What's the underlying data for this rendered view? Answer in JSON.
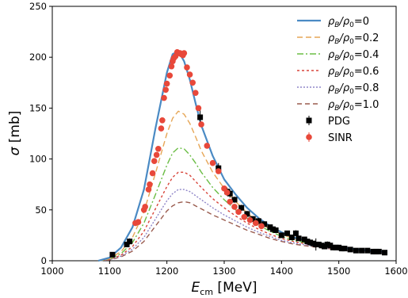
{
  "chart_data": {
    "type": "line",
    "title": "",
    "xlabel": {
      "main": "E",
      "sub": "cm",
      "unit": " [MeV]"
    },
    "ylabel": {
      "main": "σ",
      "unit": " [mb]"
    },
    "xlim": [
      1000,
      1600
    ],
    "ylim": [
      0,
      250
    ],
    "xticks": [
      1000,
      1100,
      1200,
      1300,
      1400,
      1500,
      1600
    ],
    "yticks": [
      0,
      50,
      100,
      150,
      200,
      250
    ],
    "grid": false,
    "legend_position": "top-right",
    "curve_x": [
      1080,
      1100,
      1120,
      1140,
      1160,
      1180,
      1200,
      1210,
      1220,
      1230,
      1240,
      1250,
      1260,
      1280,
      1300,
      1320,
      1340,
      1360,
      1380,
      1400,
      1420,
      1450,
      1480,
      1500,
      1520,
      1550,
      1580
    ],
    "series": [
      {
        "name": "ρB/ρ0=0",
        "label": {
          "pre": "ρ",
          "sub1": "B",
          "mid": "/ρ",
          "sub2": "0",
          "val": "=0"
        },
        "color": "#4a8ac4",
        "dash": "",
        "width": 2.2,
        "values": [
          0,
          3,
          13,
          33,
          70,
          130,
          185,
          203,
          206,
          196,
          178,
          155,
          133,
          103,
          80,
          65,
          52,
          42,
          34,
          28,
          23,
          19,
          15.5,
          13.5,
          12,
          10,
          9
        ]
      },
      {
        "name": "ρB/ρ0=0.2",
        "label": {
          "pre": "ρ",
          "sub1": "B",
          "mid": "/ρ",
          "sub2": "0",
          "val": "=0.2"
        },
        "color": "#e6a656",
        "dash": "7,4",
        "width": 1.4,
        "values": [
          0,
          2,
          9,
          23,
          48,
          86,
          125,
          140,
          147,
          144,
          135,
          122,
          108,
          87,
          71,
          58,
          47,
          38,
          31,
          26,
          22,
          18,
          15,
          13,
          11.5,
          10,
          9
        ]
      },
      {
        "name": "ρB/ρ0=0.4",
        "label": {
          "pre": "ρ",
          "sub1": "B",
          "mid": "/ρ",
          "sub2": "0",
          "val": "=0.4"
        },
        "color": "#6bbd45",
        "dash": "8,3,2,3",
        "width": 1.4,
        "values": [
          0,
          1.5,
          7,
          18,
          37,
          65,
          94,
          106,
          111,
          110,
          104,
          96,
          87,
          72,
          60,
          50,
          42,
          35,
          29,
          24,
          20,
          17,
          14,
          12.5,
          11,
          10,
          9
        ]
      },
      {
        "name": "ρB/ρ0=0.6",
        "label": {
          "pre": "ρ",
          "sub1": "B",
          "mid": "/ρ",
          "sub2": "0",
          "val": "=0.6"
        },
        "color": "#d8453a",
        "dash": "3,3",
        "width": 1.4,
        "values": [
          0,
          1.2,
          5.5,
          14,
          29,
          51,
          73,
          82,
          87,
          87,
          84,
          78,
          72,
          61,
          52,
          44,
          37,
          31,
          26,
          22,
          19,
          16,
          13.5,
          12,
          11,
          9.5,
          8.5
        ]
      },
      {
        "name": "ρB/ρ0=0.8",
        "label": {
          "pre": "ρ",
          "sub1": "B",
          "mid": "/ρ",
          "sub2": "0",
          "val": "=0.8"
        },
        "color": "#8f86c8",
        "dash": "2,2",
        "width": 1.4,
        "values": [
          0,
          1,
          4.5,
          11.5,
          23,
          41,
          59,
          66,
          70,
          70,
          68,
          64,
          60,
          52,
          45,
          39,
          33,
          28,
          24,
          20,
          17.5,
          15,
          12.5,
          11.5,
          10.5,
          9,
          8
        ]
      },
      {
        "name": "ρB/ρ0=1.0",
        "label": {
          "pre": "ρ",
          "sub1": "B",
          "mid": "/ρ",
          "sub2": "0",
          "val": "=1.0"
        },
        "color": "#9a5c4f",
        "dash": "6,4",
        "width": 1.4,
        "values": [
          0,
          0.8,
          3.8,
          9.5,
          19,
          34,
          49,
          54,
          57,
          58,
          57,
          54,
          51,
          45,
          40,
          35,
          30,
          26,
          22,
          19,
          16.5,
          14,
          12,
          11,
          10,
          9,
          8
        ]
      }
    ],
    "points": [
      {
        "name": "PDG",
        "label": "PDG",
        "marker": "square",
        "color": "#000000",
        "x": [
          1105,
          1130,
          1135,
          1258,
          1290,
          1305,
          1310,
          1318,
          1330,
          1340,
          1350,
          1360,
          1370,
          1380,
          1385,
          1390,
          1400,
          1410,
          1418,
          1425,
          1430,
          1440,
          1445,
          1450,
          1455,
          1460,
          1465,
          1470,
          1475,
          1480,
          1485,
          1490,
          1495,
          1500,
          1505,
          1510,
          1520,
          1530,
          1540,
          1550,
          1560,
          1565,
          1570,
          1580
        ],
        "y": [
          6,
          16,
          19,
          141,
          91,
          68,
          66,
          60,
          52,
          46,
          41,
          39,
          36,
          33,
          31,
          30,
          25,
          27,
          23,
          27,
          22,
          21,
          19,
          18,
          17,
          16,
          16,
          15,
          14,
          16,
          15,
          13,
          13,
          13,
          12,
          12,
          11,
          10,
          10,
          10,
          9,
          9,
          9,
          8
        ],
        "err": [
          2,
          2,
          3,
          8,
          5,
          4,
          4,
          3,
          3,
          3,
          3,
          3,
          2,
          2,
          2,
          2,
          2,
          2,
          2,
          3,
          2,
          2,
          2,
          2,
          2,
          6,
          2,
          2,
          2,
          3,
          2,
          2,
          2,
          2,
          2,
          2,
          2,
          2,
          2,
          2,
          2,
          2,
          2,
          2
        ]
      },
      {
        "name": "SINR",
        "label": "SINR",
        "marker": "circle",
        "color": "#e8483a",
        "x": [
          1145,
          1150,
          1160,
          1162,
          1168,
          1170,
          1175,
          1178,
          1182,
          1185,
          1190,
          1192,
          1195,
          1198,
          1200,
          1205,
          1208,
          1210,
          1212,
          1215,
          1218,
          1220,
          1223,
          1225,
          1228,
          1230,
          1235,
          1240,
          1245,
          1250,
          1255,
          1260,
          1270,
          1280,
          1290,
          1300,
          1305,
          1310,
          1318,
          1325,
          1335,
          1345,
          1355,
          1365
        ],
        "y": [
          37,
          38,
          50,
          53,
          70,
          75,
          86,
          98,
          104,
          110,
          130,
          138,
          160,
          168,
          174,
          182,
          191,
          196,
          199,
          201,
          205,
          204,
          204,
          203,
          202,
          204,
          190,
          183,
          175,
          165,
          150,
          134,
          113,
          96,
          88,
          71,
          67,
          58,
          53,
          48,
          43,
          40,
          37,
          34
        ],
        "err": [
          2,
          2,
          2,
          2,
          2,
          2,
          2,
          2,
          2,
          2,
          2,
          2,
          2,
          2,
          2,
          2,
          2,
          2,
          2,
          2,
          2,
          2,
          2,
          2,
          2,
          2,
          2,
          2,
          2,
          2,
          2,
          2,
          2,
          2,
          2,
          2,
          2,
          2,
          2,
          2,
          2,
          2,
          2,
          2
        ]
      }
    ]
  }
}
